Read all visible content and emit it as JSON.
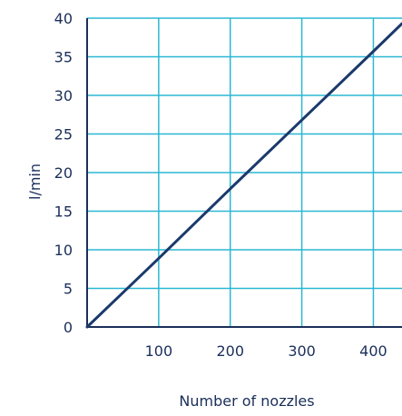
{
  "chart_data": {
    "type": "line",
    "title": "",
    "xlabel": "Number of nozzles",
    "ylabel": "l/min",
    "xlim": [
      0,
      440
    ],
    "ylim": [
      0,
      40
    ],
    "x_ticks": [
      100,
      200,
      300,
      400
    ],
    "y_ticks": [
      0,
      5,
      10,
      15,
      20,
      25,
      30,
      35,
      40
    ],
    "grid": true,
    "series": [
      {
        "x": [
          0,
          100,
          200,
          300,
          400,
          440
        ],
        "y": [
          0,
          8.9,
          17.9,
          26.8,
          35.7,
          39.3
        ]
      }
    ],
    "colors": {
      "grid": "#2bb7d4",
      "line": "#1b3a6b",
      "axis": "#1b2f5a",
      "text": "#1b2f5a"
    }
  }
}
